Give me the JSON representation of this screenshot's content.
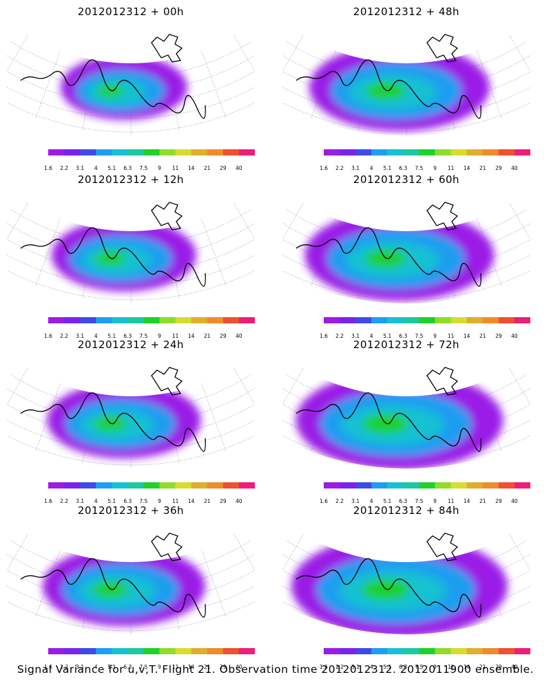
{
  "colorbar": {
    "levels": [
      "1.6",
      "2.2",
      "3.1",
      "4",
      "5.1",
      "6.3",
      "7.5",
      "9",
      "11",
      "14",
      "21",
      "29",
      "40"
    ],
    "colors": [
      "#9a1de6",
      "#7a22f0",
      "#3f4be6",
      "#1e9ef0",
      "#18c1d2",
      "#1ec8a0",
      "#1fd12a",
      "#8fdc2a",
      "#d8dc2e",
      "#e0ad2e",
      "#ef8b2e",
      "#ef5032",
      "#ef1d78"
    ]
  },
  "panels": [
    {
      "title": "2012012312 + 00h",
      "intensity": 0.4
    },
    {
      "title": "2012012312 + 48h",
      "intensity": 0.7
    },
    {
      "title": "2012012312 + 12h",
      "intensity": 0.5
    },
    {
      "title": "2012012312 + 60h",
      "intensity": 0.75
    },
    {
      "title": "2012012312 + 24h",
      "intensity": 0.55
    },
    {
      "title": "2012012312 + 72h",
      "intensity": 0.85
    },
    {
      "title": "2012012312 + 36h",
      "intensity": 0.6
    },
    {
      "title": "2012012312 + 84h",
      "intensity": 0.9
    }
  ],
  "caption": "Signal Variance for u,v,T. Flight 21. Observation time 2012012312. 2012011900 ensemble."
}
